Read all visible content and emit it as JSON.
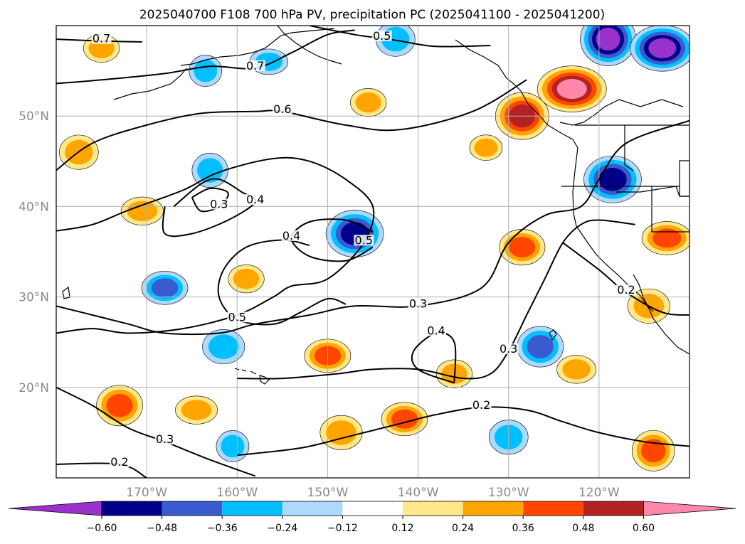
{
  "chart_data": {
    "type": "heatmap",
    "title": "2025040700 F108 700 hPa PV, precipitation PC (2025041100 - 2025041200)",
    "map_extent": {
      "lon": [
        -180,
        -110
      ],
      "lat": [
        10,
        60
      ]
    },
    "lat_ticks": [
      {
        "value": 20,
        "label": "20°N"
      },
      {
        "value": 30,
        "label": "30°N"
      },
      {
        "value": 40,
        "label": "40°N"
      },
      {
        "value": 50,
        "label": "50°N"
      }
    ],
    "lon_ticks": [
      {
        "value": -170,
        "label": "170°W"
      },
      {
        "value": -160,
        "label": "160°W"
      },
      {
        "value": -150,
        "label": "150°W"
      },
      {
        "value": -140,
        "label": "140°W"
      },
      {
        "value": -130,
        "label": "130°W"
      },
      {
        "value": -120,
        "label": "120°W"
      }
    ],
    "grid": true,
    "colorbar": {
      "levels": [
        -0.6,
        -0.48,
        -0.36,
        -0.24,
        -0.12,
        0.12,
        0.24,
        0.36,
        0.48,
        0.6
      ],
      "tick_labels": [
        "−0.60",
        "−0.48",
        "−0.36",
        "−0.24",
        "−0.12",
        "0.12",
        "0.24",
        "0.36",
        "0.48",
        "0.60"
      ],
      "colors": [
        "#9932cc",
        "#00008b",
        "#3a5bd0",
        "#00bfff",
        "#add8ff",
        "#ffffff",
        "#ffe88a",
        "#ffa500",
        "#ff4500",
        "#b22222",
        "#ff88aa"
      ],
      "extend": "both"
    },
    "precip_anomalies": [
      {
        "lon": -175,
        "lat": 57.5,
        "value": 0.3
      },
      {
        "lon": -177.5,
        "lat": 46,
        "value": 0.3
      },
      {
        "lon": -170.5,
        "lat": 39.5,
        "value": 0.3
      },
      {
        "lon": -163,
        "lat": 44,
        "value": -0.3
      },
      {
        "lon": -168,
        "lat": 31,
        "value": -0.4
      },
      {
        "lon": -161.5,
        "lat": 24.5,
        "value": -0.3
      },
      {
        "lon": -159,
        "lat": 32,
        "value": 0.3
      },
      {
        "lon": -173,
        "lat": 18,
        "value": 0.4
      },
      {
        "lon": -164.5,
        "lat": 17.5,
        "value": 0.3
      },
      {
        "lon": -160.5,
        "lat": 13.5,
        "value": -0.25
      },
      {
        "lon": -150,
        "lat": 23.5,
        "value": 0.4
      },
      {
        "lon": -147,
        "lat": 37,
        "value": -0.5
      },
      {
        "lon": -145.5,
        "lat": 51.5,
        "value": 0.3
      },
      {
        "lon": -142.5,
        "lat": 58.5,
        "value": -0.3
      },
      {
        "lon": -156.5,
        "lat": 56,
        "value": -0.25
      },
      {
        "lon": -163.5,
        "lat": 55,
        "value": -0.25
      },
      {
        "lon": -141.5,
        "lat": 16.5,
        "value": 0.4
      },
      {
        "lon": -148.5,
        "lat": 15,
        "value": 0.3
      },
      {
        "lon": -136,
        "lat": 21.5,
        "value": 0.3
      },
      {
        "lon": -128.5,
        "lat": 50,
        "value": 0.5
      },
      {
        "lon": -123,
        "lat": 53,
        "value": 0.65
      },
      {
        "lon": -119,
        "lat": 58.5,
        "value": -0.6
      },
      {
        "lon": -113,
        "lat": 57.5,
        "value": -0.65
      },
      {
        "lon": -118.5,
        "lat": 43,
        "value": -0.5
      },
      {
        "lon": -128.5,
        "lat": 35.5,
        "value": 0.45
      },
      {
        "lon": -126.5,
        "lat": 24.5,
        "value": -0.4
      },
      {
        "lon": -112.5,
        "lat": 36.5,
        "value": 0.4
      },
      {
        "lon": -114,
        "lat": 13,
        "value": 0.4
      },
      {
        "lon": -122.5,
        "lat": 22,
        "value": 0.3
      },
      {
        "lon": -114.5,
        "lat": 29,
        "value": 0.3
      },
      {
        "lon": -132.5,
        "lat": 46.5,
        "value": 0.25
      },
      {
        "lon": -130,
        "lat": 14.5,
        "value": -0.3
      }
    ],
    "pv_contours": [
      {
        "level": 0.7,
        "label": "0.7",
        "points": [
          [
            -180,
            58.5
          ],
          [
            -175,
            58.3
          ],
          [
            -170.5,
            58.2
          ]
        ]
      },
      {
        "level": 0.7,
        "label": "0.7",
        "points": [
          [
            -180,
            53.6
          ],
          [
            -175,
            54
          ],
          [
            -168,
            54.7
          ],
          [
            -163,
            55.5
          ],
          [
            -158,
            55.3
          ],
          [
            -154,
            57
          ],
          [
            -150,
            59
          ],
          [
            -147,
            59.5
          ]
        ]
      },
      {
        "level": 0.6,
        "label": "0.6",
        "points": [
          [
            -180,
            44
          ],
          [
            -176,
            47
          ],
          [
            -170,
            49
          ],
          [
            -164,
            50.3
          ],
          [
            -158,
            50.5
          ],
          [
            -155,
            50.5
          ],
          [
            -148,
            49
          ],
          [
            -142,
            48.5
          ],
          [
            -134,
            50.5
          ],
          [
            -128,
            54
          ]
        ]
      },
      {
        "level": 0.5,
        "label": "0.5",
        "points": [
          [
            -180,
            37.3
          ],
          [
            -176,
            38
          ],
          [
            -172,
            39.6
          ],
          [
            -166,
            41.8
          ],
          [
            -162,
            43.8
          ],
          [
            -156,
            45.3
          ],
          [
            -152,
            45
          ],
          [
            -148,
            43
          ],
          [
            -145,
            40
          ],
          [
            -146,
            36
          ],
          [
            -150,
            32
          ],
          [
            -154,
            31.2
          ],
          [
            -156,
            30
          ],
          [
            -160,
            28
          ],
          [
            -166,
            26.5
          ],
          [
            -172,
            26
          ],
          [
            -176,
            26.5
          ],
          [
            -180,
            26
          ]
        ]
      },
      {
        "level": 0.5,
        "label": "0.5",
        "points": [
          [
            -132,
            57.8
          ],
          [
            -138,
            57.7
          ],
          [
            -142,
            58.3
          ],
          [
            -144,
            58.6
          ],
          [
            -147,
            59
          ],
          [
            -152,
            60
          ]
        ]
      },
      {
        "level": 0.5,
        "label": "0.5",
        "points": [
          [
            -152,
            35.7
          ],
          [
            -155,
            36.3
          ],
          [
            -159,
            35.5
          ],
          [
            -161.5,
            33
          ],
          [
            -162,
            30
          ],
          [
            -160,
            27.5
          ],
          [
            -156,
            27
          ],
          [
            -153,
            28.3
          ],
          [
            -150,
            29.8
          ],
          [
            -148,
            29.2
          ]
        ]
      },
      {
        "level": 0.4,
        "label": "0.4",
        "points": [
          [
            -167,
            40
          ],
          [
            -164,
            42.5
          ],
          [
            -162,
            43
          ],
          [
            -159.5,
            41.6
          ],
          [
            -158,
            40.5
          ],
          [
            -161,
            38.5
          ],
          [
            -165,
            37
          ],
          [
            -168,
            37
          ],
          [
            -168,
            40
          ]
        ]
      },
      {
        "level": 0.4,
        "label": "0.4",
        "points": [
          [
            -145,
            37.2
          ],
          [
            -148,
            38.5
          ],
          [
            -152,
            38.3
          ],
          [
            -154,
            36.5
          ],
          [
            -152,
            34.5
          ],
          [
            -148,
            34
          ],
          [
            -145,
            35.5
          ]
        ]
      },
      {
        "level": 0.4,
        "label": "0.4",
        "points": [
          [
            -136,
            20.5
          ],
          [
            -140,
            22
          ],
          [
            -140.5,
            24
          ],
          [
            -138,
            26
          ],
          [
            -136,
            25
          ],
          [
            -136,
            20.5
          ]
        ]
      },
      {
        "level": 0.3,
        "label": "0.3",
        "points": [
          [
            -165,
            41
          ],
          [
            -163,
            42
          ],
          [
            -161,
            41.5
          ],
          [
            -162,
            40
          ],
          [
            -164,
            39.5
          ],
          [
            -165,
            41
          ]
        ]
      },
      {
        "level": 0.3,
        "label": "0.3",
        "points": [
          [
            -180,
            29
          ],
          [
            -176,
            28
          ],
          [
            -172,
            27
          ],
          [
            -168,
            26
          ],
          [
            -162,
            26
          ],
          [
            -158,
            27
          ],
          [
            -152,
            28
          ],
          [
            -147,
            29
          ],
          [
            -140,
            29
          ],
          [
            -133,
            31
          ],
          [
            -130,
            36
          ],
          [
            -126,
            39
          ],
          [
            -122,
            40
          ],
          [
            -120,
            43
          ],
          [
            -117,
            47
          ],
          [
            -110,
            49.5
          ]
        ]
      },
      {
        "level": 0.3,
        "label": "0.3",
        "points": [
          [
            -160,
            21
          ],
          [
            -155,
            21
          ],
          [
            -149,
            21.5
          ],
          [
            -145,
            22
          ],
          [
            -140,
            22
          ],
          [
            -135,
            21
          ],
          [
            -132,
            21.5
          ],
          [
            -130,
            24
          ],
          [
            -128,
            28
          ],
          [
            -126,
            32
          ],
          [
            -124,
            36
          ],
          [
            -122,
            38
          ],
          [
            -120,
            38.5
          ],
          [
            -116,
            38
          ]
        ]
      },
      {
        "level": 0.3,
        "label": "0.3",
        "points": [
          [
            -180,
            20
          ],
          [
            -176,
            18
          ],
          [
            -172,
            15.5
          ],
          [
            -168,
            14
          ],
          [
            -163,
            12
          ],
          [
            -158,
            10.2
          ]
        ]
      },
      {
        "level": 0.2,
        "label": "0.2",
        "points": [
          [
            -180,
            11.5
          ],
          [
            -173,
            11.5
          ],
          [
            -170,
            10
          ]
        ]
      },
      {
        "level": 0.2,
        "label": "0.2",
        "points": [
          [
            -160,
            12.5
          ],
          [
            -153,
            13.3
          ],
          [
            -148,
            14.5
          ],
          [
            -142,
            16
          ],
          [
            -138,
            17
          ],
          [
            -133,
            17.8
          ],
          [
            -128,
            17.5
          ],
          [
            -124,
            16.2
          ],
          [
            -120,
            15
          ],
          [
            -115,
            14
          ],
          [
            -110,
            13.5
          ]
        ]
      },
      {
        "level": 0.2,
        "label": "0.2",
        "points": [
          [
            -124,
            36
          ],
          [
            -120,
            33
          ],
          [
            -117,
            30.5
          ],
          [
            -113,
            28.3
          ],
          [
            -110,
            28
          ]
        ]
      }
    ]
  }
}
